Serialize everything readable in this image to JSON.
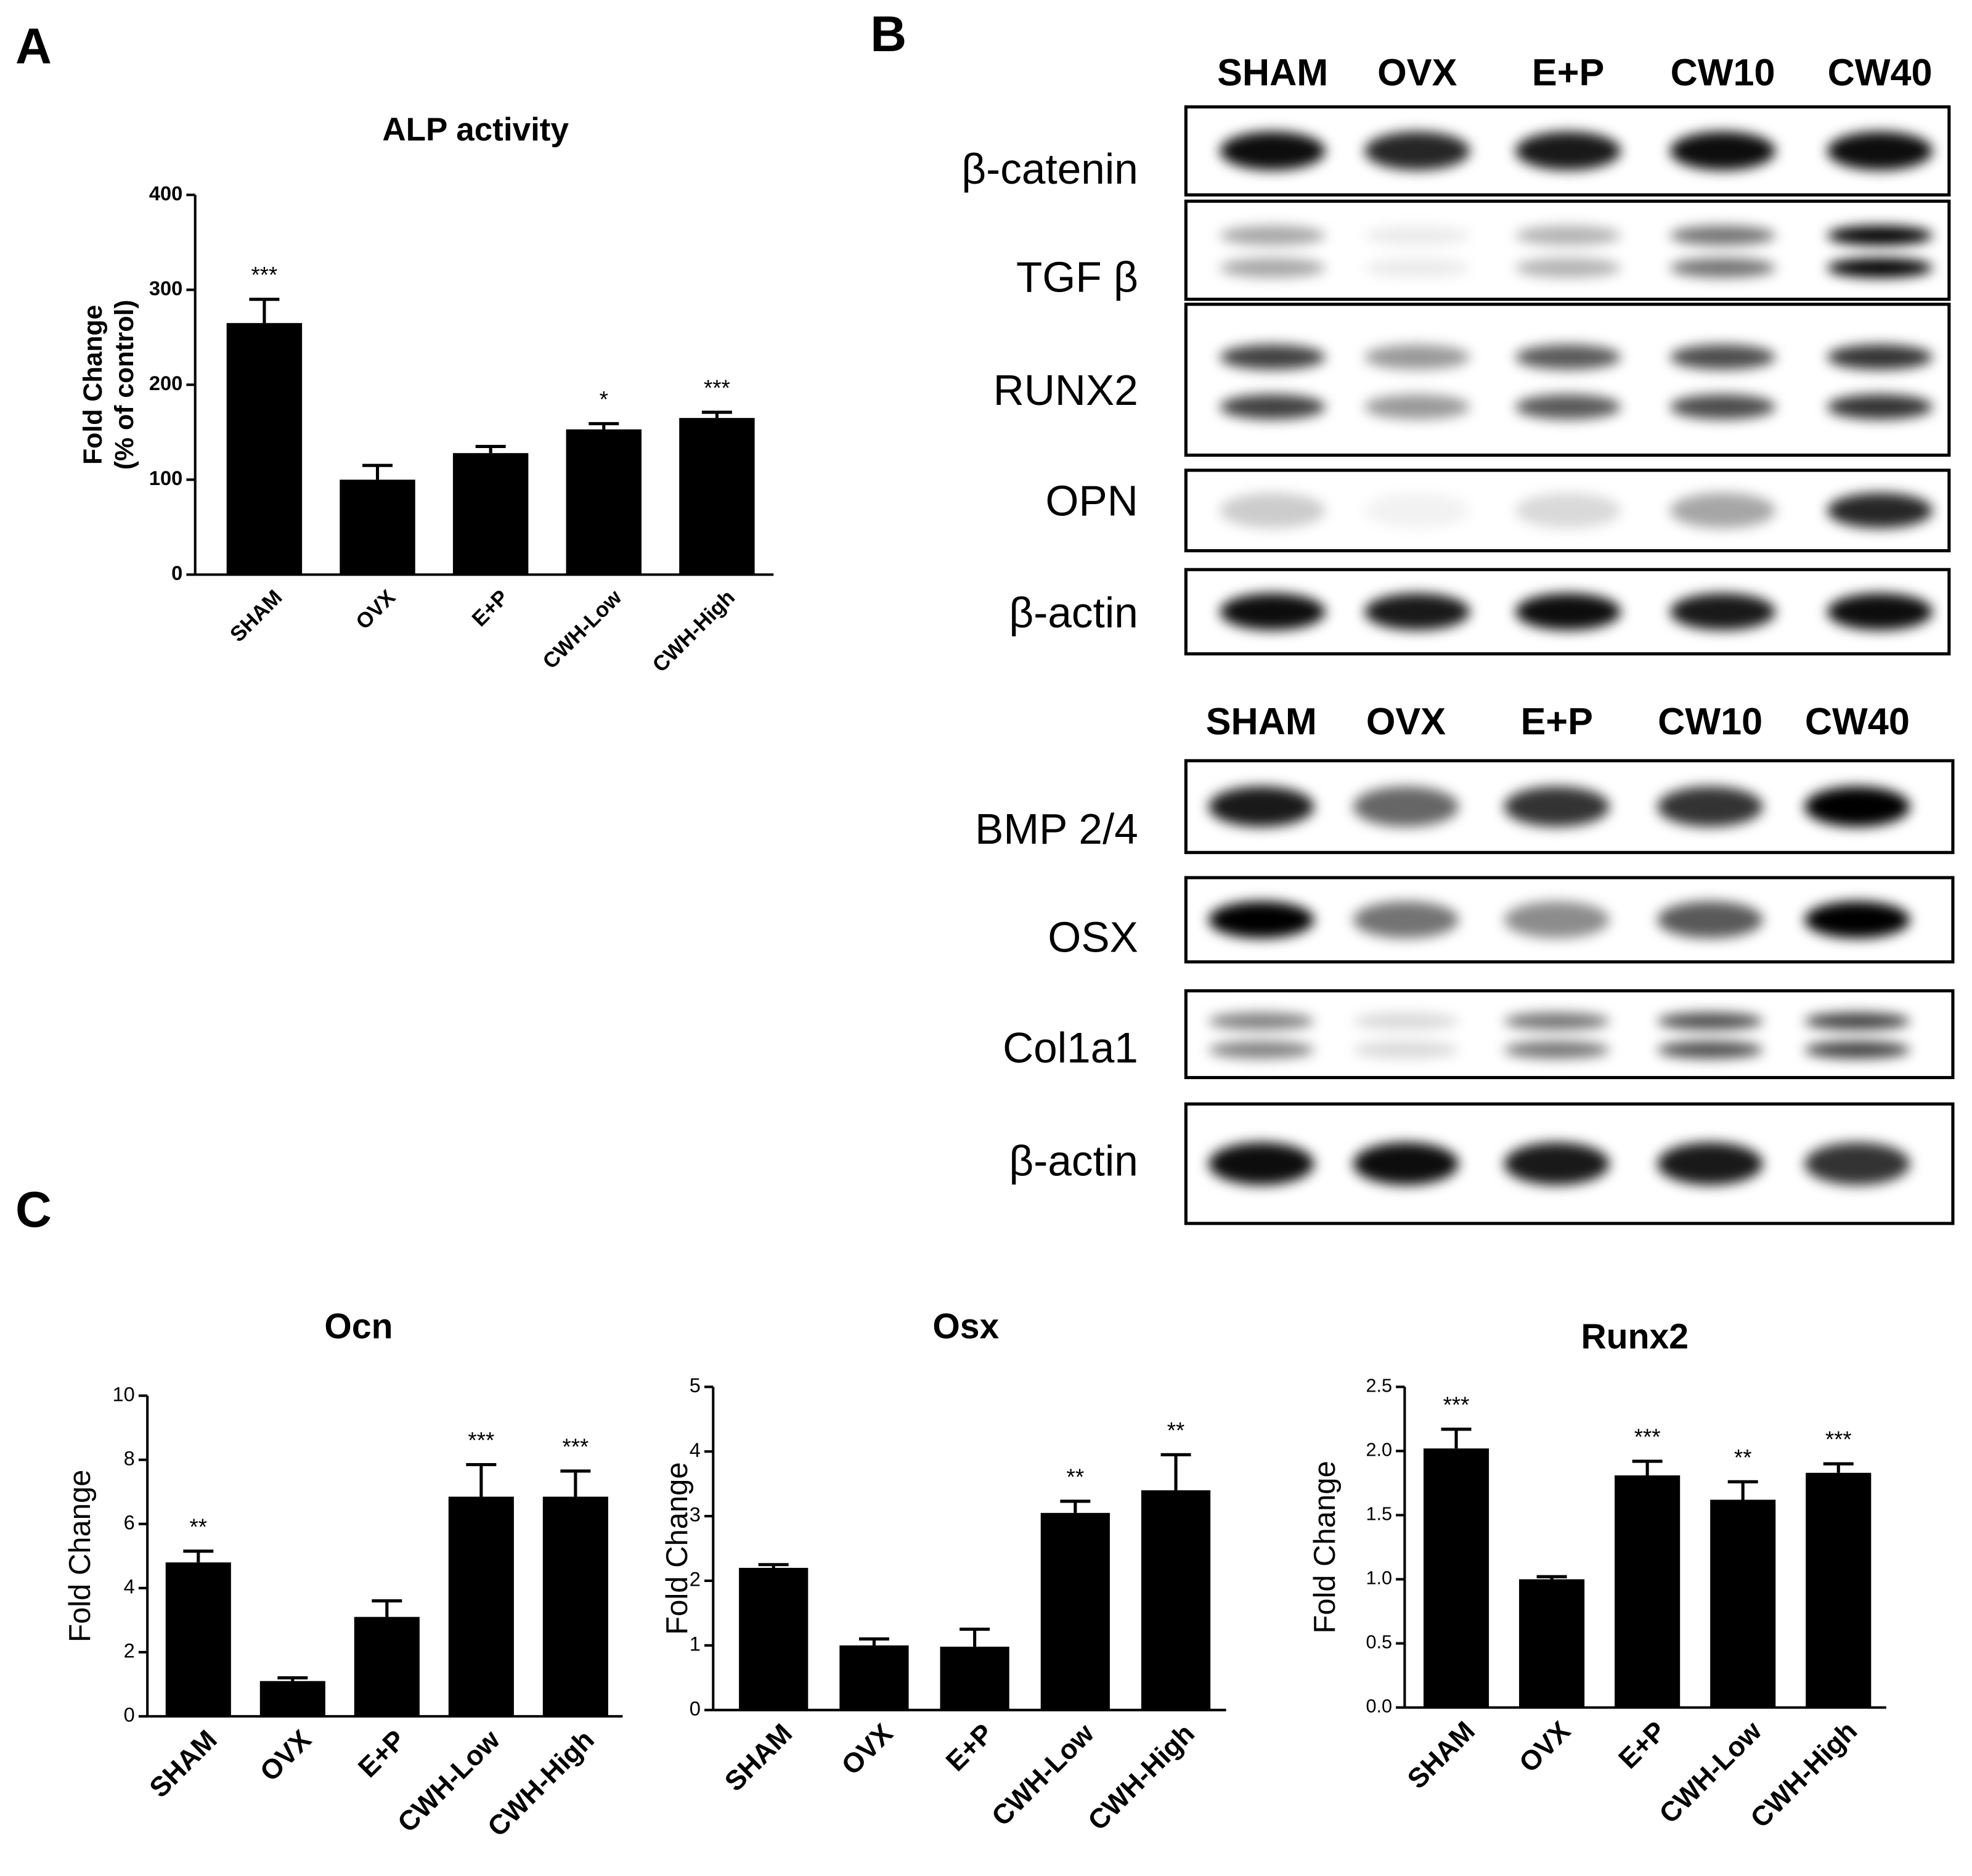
{
  "panel_labels": [
    "A",
    "B",
    "C"
  ],
  "blots": [
    {
      "lanes": [
        "SHAM",
        "OVX",
        "E+P",
        "CW10",
        "CW40"
      ],
      "rows": [
        "β-catenin",
        "TGF β",
        "RUNX2",
        "OPN",
        "β-actin"
      ]
    },
    {
      "lanes": [
        "SHAM",
        "OVX",
        "E+P",
        "CW10",
        "CW40"
      ],
      "rows": [
        "BMP 2/4",
        "OSX",
        "Col1a1",
        "β-actin"
      ]
    }
  ],
  "chart_data": [
    {
      "type": "bar",
      "title": "ALP activity",
      "ylabel": [
        "Fold Change",
        "(% of control)"
      ],
      "categories": [
        "SHAM",
        "OVX",
        "E+P",
        "CWH-Low",
        "CWH-High"
      ],
      "values": [
        265,
        100,
        128,
        153,
        165
      ],
      "errors": [
        25,
        15,
        7,
        6,
        6
      ],
      "annotations": [
        "***",
        null,
        null,
        "*",
        "***"
      ],
      "color": "#000000",
      "ylim": [
        0,
        400
      ],
      "yticks": [
        0,
        100,
        200,
        300,
        400
      ]
    },
    {
      "type": "bar",
      "title": "Ocn",
      "ylabel": [
        "Fold Change"
      ],
      "categories": [
        "SHAM",
        "OVX",
        "E+P",
        "CWH-Low",
        "CWH-High"
      ],
      "values": [
        4.8,
        1.1,
        3.1,
        6.85,
        6.85
      ],
      "errors": [
        0.35,
        0.1,
        0.5,
        1.0,
        0.8
      ],
      "annotations": [
        "**",
        null,
        null,
        "***",
        "***"
      ],
      "color": "#000000",
      "ylim": [
        0,
        10
      ],
      "yticks": [
        0,
        2,
        4,
        6,
        8,
        10
      ]
    },
    {
      "type": "bar",
      "title": "Osx",
      "ylabel": [
        "Fold Change"
      ],
      "categories": [
        "SHAM",
        "OVX",
        "E+P",
        "CWH-Low",
        "CWH-High"
      ],
      "values": [
        2.2,
        1.0,
        0.98,
        3.05,
        3.4
      ],
      "errors": [
        0.05,
        0.1,
        0.27,
        0.18,
        0.55
      ],
      "annotations": [
        null,
        null,
        null,
        "**",
        "**"
      ],
      "color": "#000000",
      "ylim": [
        0,
        5
      ],
      "yticks": [
        0,
        1,
        2,
        3,
        4,
        5
      ]
    },
    {
      "type": "bar",
      "title": "Runx2",
      "ylabel": [
        "Fold Change"
      ],
      "categories": [
        "SHAM",
        "OVX",
        "E+P",
        "CWH-Low",
        "CWH-High"
      ],
      "values": [
        2.02,
        1.0,
        1.81,
        1.62,
        1.83
      ],
      "errors": [
        0.15,
        0.02,
        0.11,
        0.14,
        0.07
      ],
      "annotations": [
        "***",
        null,
        "***",
        "**",
        "***"
      ],
      "color": "#000000",
      "ylim": [
        0,
        2.5
      ],
      "yticks": [
        {
          "value": 0,
          "label": "0.0"
        },
        0.5,
        {
          "value": 1,
          "label": "1.0"
        },
        1.5,
        {
          "value": 2,
          "label": "2.0"
        },
        2.5
      ]
    }
  ]
}
